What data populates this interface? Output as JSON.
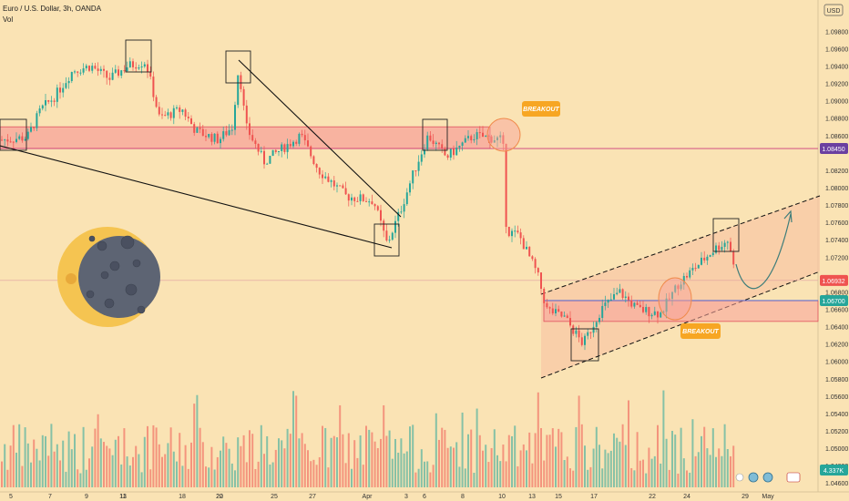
{
  "header": {
    "symbol_line": "Euro / U.S. Dollar, 3h, OANDA",
    "volume_label": "Vol"
  },
  "currency_button": "USD",
  "colors": {
    "background": "#fae3b4",
    "up": "#26a69a",
    "down": "#ef5350",
    "zone_fill": "#f7a39a",
    "zone_border": "#e0535e",
    "channel_fill": "#f8c6a4",
    "badge": "#f7a623",
    "level_line": "#cc3b7d"
  },
  "chart_data": {
    "type": "candlestick",
    "y_axis_ticks": [
      "1.09800",
      "1.09600",
      "1.09400",
      "1.09200",
      "1.09000",
      "1.08800",
      "1.08600",
      "1.08200",
      "1.08000",
      "1.07800",
      "1.07600",
      "1.07400",
      "1.07200",
      "1.06800",
      "1.06600",
      "1.06400",
      "1.06200",
      "1.06000",
      "1.05800",
      "1.05600",
      "1.05400",
      "1.05200",
      "1.05000",
      "1.04800",
      "1.04600"
    ],
    "ylim": [
      1.0455,
      1.0995
    ],
    "x_axis_ticks": [
      "5",
      "7",
      "9",
      "11",
      "13",
      "18",
      "20",
      "22",
      "25",
      "27",
      "Apr",
      "3",
      "6",
      "8",
      "10",
      "13",
      "15",
      "17",
      "22",
      "24",
      "29",
      "May"
    ],
    "price_labels": [
      {
        "value": "1.08450",
        "color": "#6b3fa0"
      },
      {
        "value": "1.06932",
        "color": "#ef5350"
      },
      {
        "value": "1.06700",
        "color": "#26a69a"
      },
      {
        "value": "4.337K",
        "color": "#26a69a"
      }
    ],
    "zones": [
      {
        "name": "resistance-zone",
        "from": 1.0845,
        "to": 1.087
      },
      {
        "name": "support-zone",
        "from": 1.0646,
        "to": 1.067
      }
    ],
    "levels": [
      1.0845,
      1.06932,
      1.067
    ],
    "annotations": [
      "BREAKOUT",
      "BREAKOUT"
    ]
  }
}
